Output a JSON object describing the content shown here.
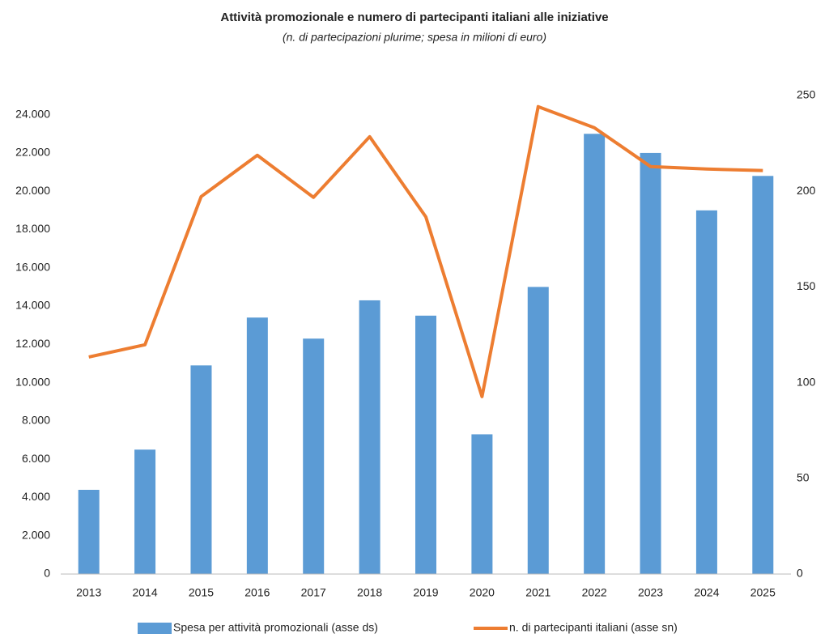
{
  "chart_data": {
    "type": "bar_line",
    "title": "Attività promozionale e numero di partecipanti  italiani alle iniziative",
    "subtitle": "(n. di partecipazioni plurime; spesa in milioni di euro)",
    "categories": [
      "2013",
      "2014",
      "2015",
      "2016",
      "2017",
      "2018",
      "2019",
      "2020",
      "2021",
      "2022",
      "2023",
      "2024",
      "2025"
    ],
    "series": [
      {
        "name": "Spesa per attività promozionali (asse ds)",
        "type": "bar",
        "axis": "y2",
        "color": "#5b9bd5",
        "values": [
          44,
          65,
          109,
          134,
          123,
          143,
          135,
          73,
          150,
          230,
          220,
          190,
          208
        ]
      },
      {
        "name": "n. di partecipanti italiani (asse sn)",
        "type": "line",
        "axis": "y",
        "color": "#ed7d31",
        "values": [
          11340,
          11980,
          19720,
          21880,
          19680,
          22850,
          18660,
          9270,
          24420,
          23320,
          21290,
          21160,
          21080
        ]
      }
    ],
    "ylim": [
      0,
      25000
    ],
    "yticks": [
      0,
      {
        "value": 2000,
        "label": "2.000"
      },
      {
        "value": 4000,
        "label": "4.000"
      },
      {
        "value": 6000,
        "label": "6.000"
      },
      {
        "value": 8000,
        "label": "8.000"
      },
      {
        "value": 10000,
        "label": "10.000"
      },
      {
        "value": 12000,
        "label": "12.000"
      },
      {
        "value": 14000,
        "label": "14.000"
      },
      {
        "value": 16000,
        "label": "16.000"
      },
      {
        "value": 18000,
        "label": "18.000"
      },
      {
        "value": 20000,
        "label": "20.000"
      },
      {
        "value": 22000,
        "label": "22.000"
      },
      {
        "value": 24000,
        "label": "24.000"
      }
    ],
    "y2lim": [
      0,
      250
    ],
    "y2ticks": [
      0,
      50,
      100,
      150,
      200,
      250
    ],
    "grid": false
  }
}
